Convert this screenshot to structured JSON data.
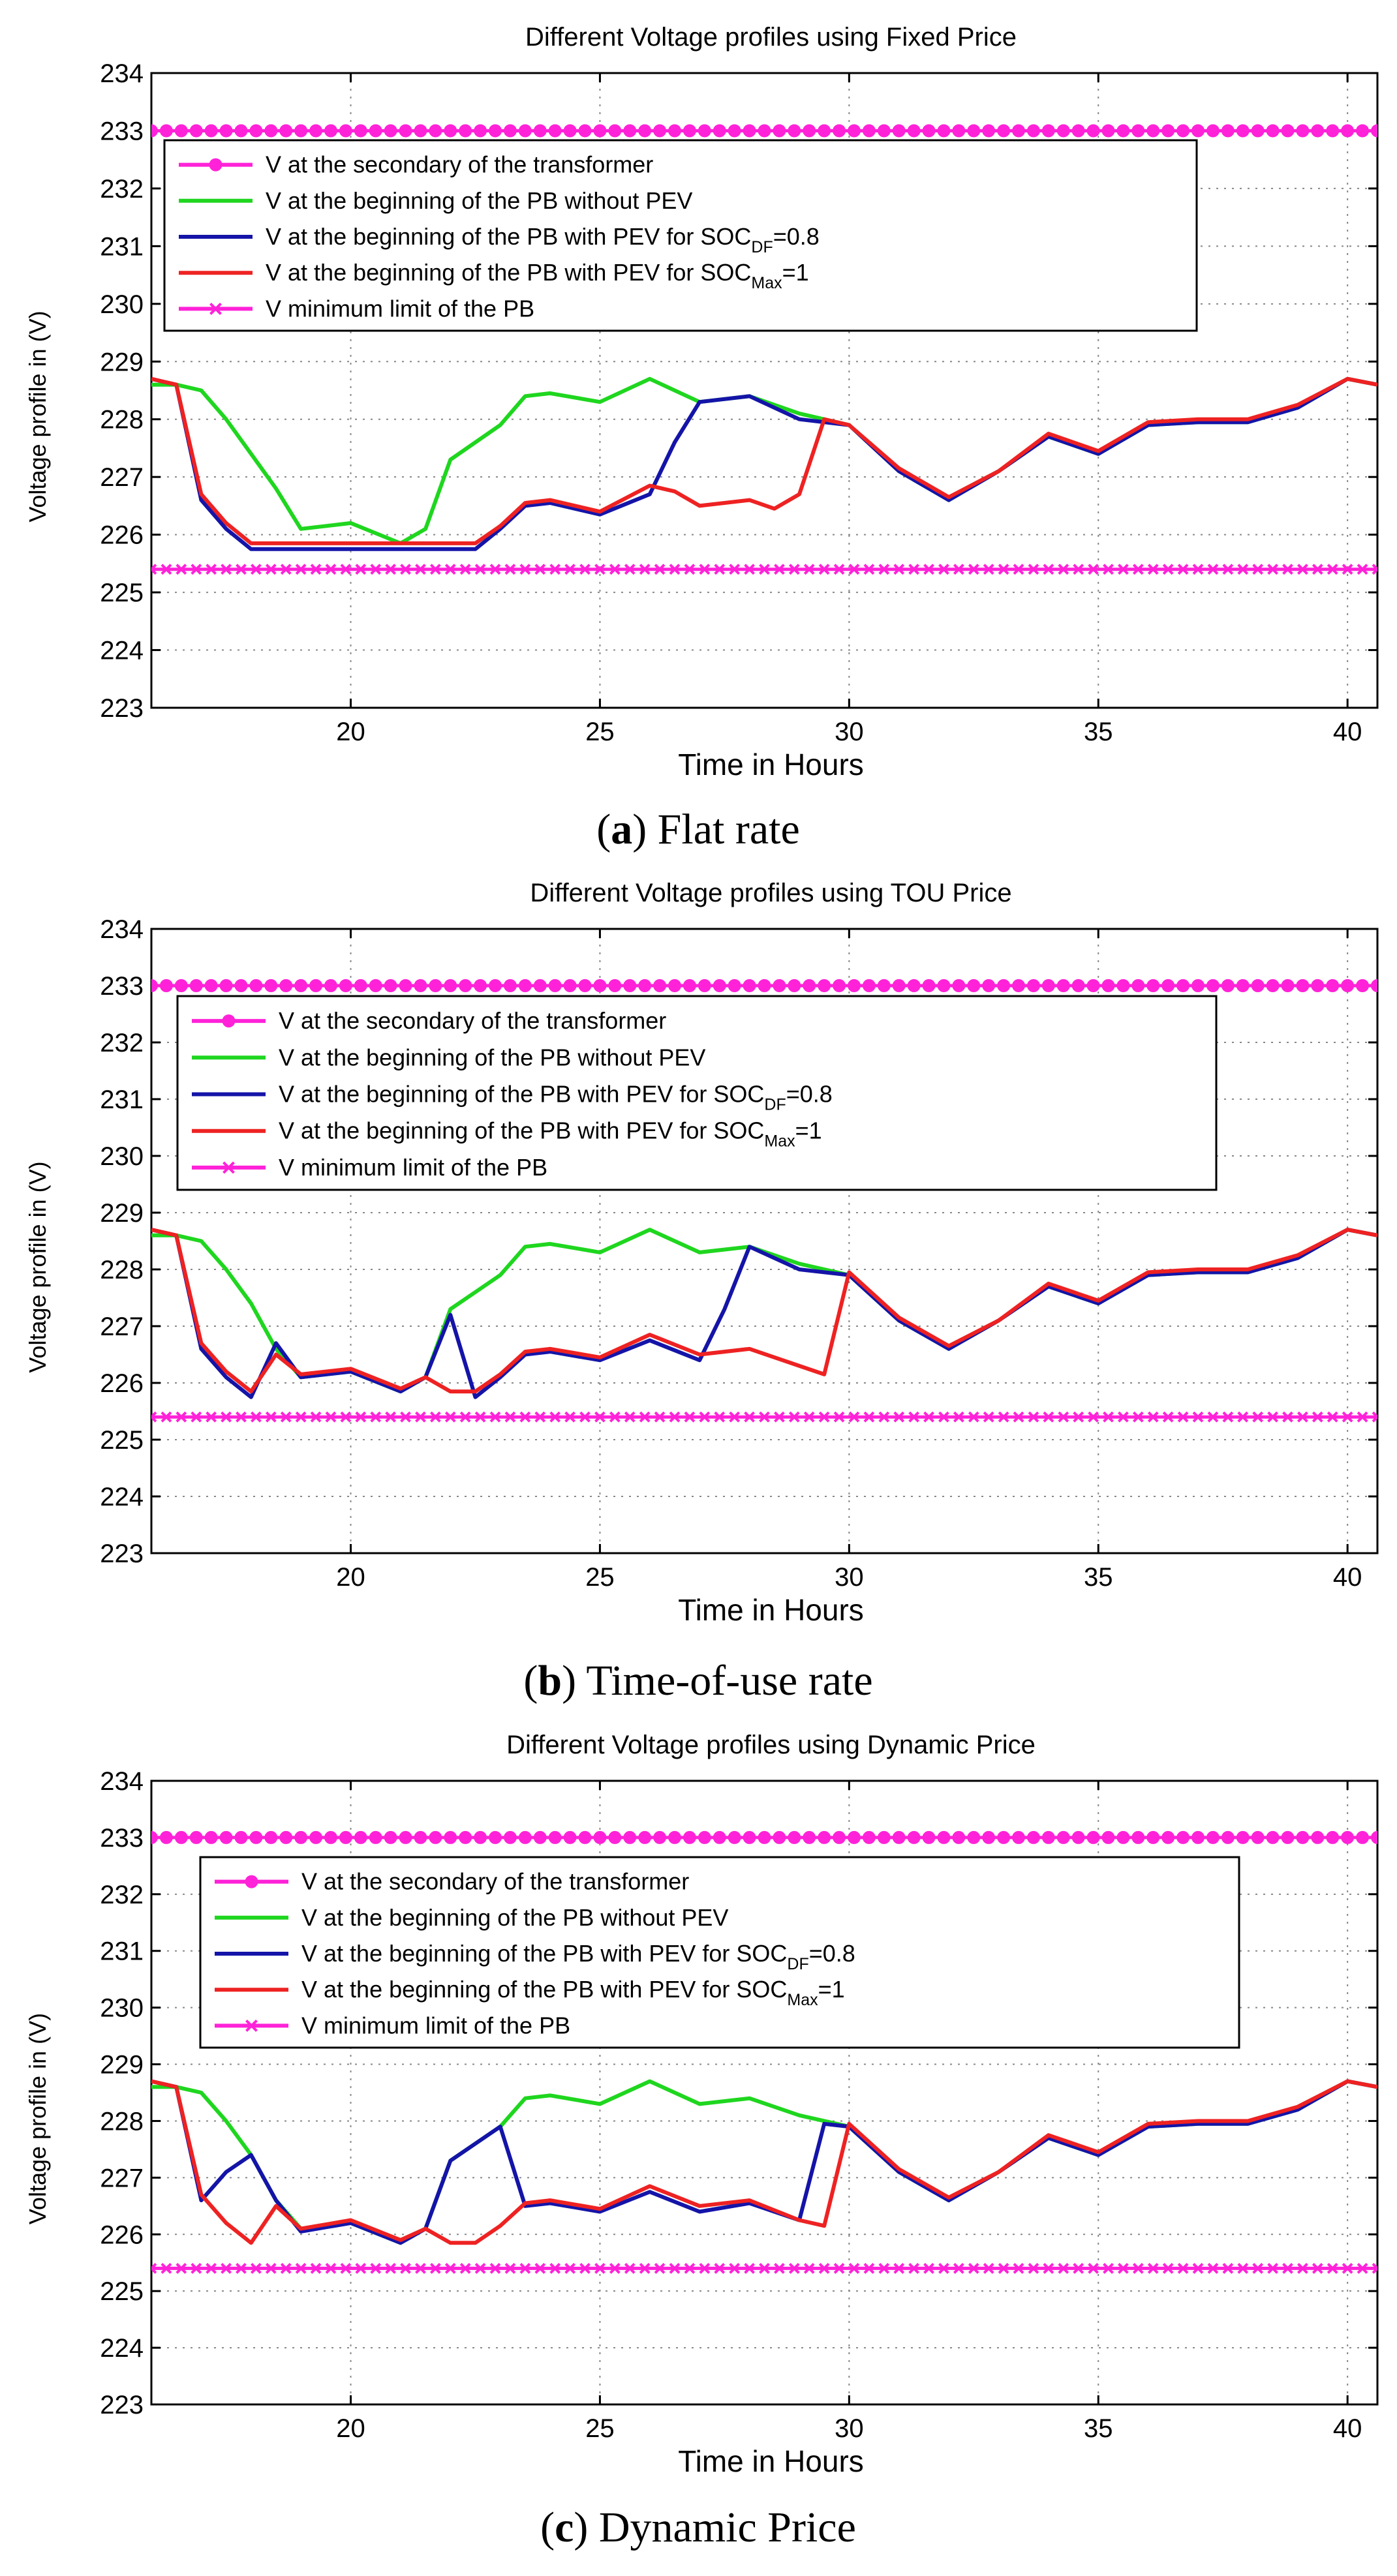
{
  "figure": {
    "legend_entries": [
      {
        "text": "V at the secondary of the transformer",
        "sub": "",
        "tail": "",
        "color": "#ff22d8",
        "marker": "circle"
      },
      {
        "text": "V at the beginning of the PB without PEV",
        "sub": "",
        "tail": "",
        "color": "#1fd61f",
        "marker": "none"
      },
      {
        "text": "V at the beginning of the PB with PEV for SOC",
        "sub": "DF",
        "tail": "=0.8",
        "color": "#1414a8",
        "marker": "none"
      },
      {
        "text": "V at the beginning of the PB with PEV for SOC",
        "sub": "Max",
        "tail": "=1",
        "color": "#ee2222",
        "marker": "none"
      },
      {
        "text": "V minimum limit of the PB",
        "sub": "",
        "tail": "",
        "color": "#ff22d8",
        "marker": "cross"
      }
    ]
  },
  "chart_data": [
    {
      "type": "line",
      "title": "Different Voltage profiles using Fixed Price",
      "xlabel": "Time in Hours",
      "ylabel": "Voltage profile in (V)",
      "xlim": [
        16,
        40.6
      ],
      "ylim": [
        223,
        234
      ],
      "xticks": [
        20,
        25,
        30,
        35,
        40
      ],
      "yticks": [
        223,
        224,
        225,
        226,
        227,
        228,
        229,
        230,
        231,
        232,
        233,
        234
      ],
      "grid": true,
      "legend_position": "top-left",
      "caption_letter": "a",
      "caption_open": "(",
      "caption_rest": ") Flat rate",
      "series": [
        {
          "name": "V at the secondary of the transformer",
          "color": "#ff22d8",
          "marker": "circle",
          "x": [
            16,
            40.6
          ],
          "y": [
            233,
            233
          ]
        },
        {
          "name": "V at the beginning of the PB without PEV",
          "color": "#1fd61f",
          "marker": "none",
          "x": [
            16,
            16.5,
            17,
            17.5,
            18,
            18.5,
            19,
            20,
            21,
            21.5,
            22,
            22.5,
            23,
            23.5,
            24,
            25,
            26,
            27,
            28,
            29,
            30,
            31,
            32,
            33,
            34,
            35,
            36,
            37,
            38,
            39,
            40,
            40.6
          ],
          "y": [
            228.6,
            228.6,
            228.5,
            228.0,
            227.4,
            226.8,
            226.1,
            226.2,
            225.85,
            226.1,
            227.3,
            227.6,
            227.9,
            228.4,
            228.45,
            228.3,
            228.7,
            228.3,
            228.4,
            228.1,
            227.9,
            227.1,
            226.6,
            227.1,
            227.7,
            227.4,
            227.9,
            227.95,
            227.95,
            228.2,
            228.7,
            228.6
          ]
        },
        {
          "name": "V at the beginning of the PB with PEV for SOC_DF=0.8",
          "color": "#1414a8",
          "marker": "none",
          "x": [
            16,
            16.5,
            17,
            17.5,
            18,
            18.5,
            19,
            20,
            21,
            21.5,
            22,
            22.5,
            23,
            23.5,
            24,
            25,
            26,
            26.5,
            27,
            28,
            29,
            30,
            31,
            32,
            33,
            34,
            35,
            36,
            37,
            38,
            39,
            40,
            40.6
          ],
          "y": [
            228.7,
            228.6,
            226.6,
            226.1,
            225.75,
            225.75,
            225.75,
            225.75,
            225.75,
            225.75,
            225.75,
            225.75,
            226.1,
            226.5,
            226.55,
            226.35,
            226.7,
            227.6,
            228.3,
            228.4,
            228.0,
            227.9,
            227.1,
            226.6,
            227.1,
            227.7,
            227.4,
            227.9,
            227.95,
            227.95,
            228.2,
            228.7,
            228.6
          ]
        },
        {
          "name": "V at the beginning of the PB with PEV for SOC_Max=1",
          "color": "#ee2222",
          "marker": "none",
          "x": [
            16,
            16.5,
            17,
            17.5,
            18,
            18.5,
            19,
            20,
            21,
            21.5,
            22,
            22.5,
            23,
            23.5,
            24,
            25,
            26,
            26.5,
            27,
            28,
            28.5,
            29,
            29.5,
            30,
            31,
            32,
            33,
            34,
            35,
            36,
            37,
            38,
            39,
            40,
            40.6
          ],
          "y": [
            228.7,
            228.6,
            226.7,
            226.2,
            225.85,
            225.85,
            225.85,
            225.85,
            225.85,
            225.85,
            225.85,
            225.85,
            226.15,
            226.55,
            226.6,
            226.4,
            226.85,
            226.75,
            226.5,
            226.6,
            226.45,
            226.7,
            228.0,
            227.9,
            227.15,
            226.65,
            227.1,
            227.75,
            227.45,
            227.95,
            228.0,
            228.0,
            228.25,
            228.7,
            228.6
          ]
        },
        {
          "name": "V minimum limit of the PB",
          "color": "#ff22d8",
          "marker": "cross",
          "x": [
            16,
            40.6
          ],
          "y": [
            225.4,
            225.4
          ]
        }
      ]
    },
    {
      "type": "line",
      "title": "Different Voltage profiles using TOU Price",
      "xlabel": "Time in Hours",
      "ylabel": "Voltage profile in (V)",
      "xlim": [
        16,
        40.6
      ],
      "ylim": [
        223,
        234
      ],
      "xticks": [
        20,
        25,
        30,
        35,
        40
      ],
      "yticks": [
        223,
        224,
        225,
        226,
        227,
        228,
        229,
        230,
        231,
        232,
        233,
        234
      ],
      "grid": true,
      "legend_position": "top-left",
      "caption_letter": "b",
      "caption_open": "(",
      "caption_rest": ") Time-of-use rate",
      "series": [
        {
          "name": "V at the secondary of the transformer",
          "color": "#ff22d8",
          "marker": "circle",
          "x": [
            16,
            40.6
          ],
          "y": [
            233,
            233
          ]
        },
        {
          "name": "V at the beginning of the PB without PEV",
          "color": "#1fd61f",
          "marker": "none",
          "x": [
            16,
            16.5,
            17,
            17.5,
            18,
            18.5,
            19,
            20,
            21,
            21.5,
            22,
            22.5,
            23,
            23.5,
            24,
            25,
            26,
            27,
            28,
            29,
            30,
            31,
            32,
            33,
            34,
            35,
            36,
            37,
            38,
            39,
            40,
            40.6
          ],
          "y": [
            228.6,
            228.6,
            228.5,
            228.0,
            227.4,
            226.6,
            226.1,
            226.2,
            225.85,
            226.1,
            227.3,
            227.6,
            227.9,
            228.4,
            228.45,
            228.3,
            228.7,
            228.3,
            228.4,
            228.1,
            227.9,
            227.1,
            226.6,
            227.1,
            227.7,
            227.4,
            227.9,
            227.95,
            227.95,
            228.2,
            228.7,
            228.6
          ]
        },
        {
          "name": "V at the beginning of the PB with PEV for SOC_DF=0.8",
          "color": "#1414a8",
          "marker": "none",
          "x": [
            16,
            16.5,
            17,
            17.5,
            18,
            18.5,
            19,
            20,
            21,
            21.5,
            22,
            22.5,
            23,
            23.5,
            24,
            25,
            26,
            27,
            27.5,
            28,
            29,
            30,
            31,
            32,
            33,
            34,
            35,
            36,
            37,
            38,
            39,
            40,
            40.6
          ],
          "y": [
            228.7,
            228.6,
            226.6,
            226.1,
            225.75,
            226.7,
            226.1,
            226.2,
            225.85,
            226.1,
            227.2,
            225.75,
            226.1,
            226.5,
            226.55,
            226.4,
            226.75,
            226.4,
            227.3,
            228.4,
            228.0,
            227.9,
            227.1,
            226.6,
            227.1,
            227.7,
            227.4,
            227.9,
            227.95,
            227.95,
            228.2,
            228.7,
            228.6
          ]
        },
        {
          "name": "V at the beginning of the PB with PEV for SOC_Max=1",
          "color": "#ee2222",
          "marker": "none",
          "x": [
            16,
            16.5,
            17,
            17.5,
            18,
            18.5,
            19,
            20,
            21,
            21.5,
            22,
            22.5,
            23,
            23.5,
            24,
            25,
            26,
            27,
            28,
            29,
            29.5,
            30,
            31,
            32,
            33,
            34,
            35,
            36,
            37,
            38,
            39,
            40,
            40.6
          ],
          "y": [
            228.7,
            228.6,
            226.7,
            226.2,
            225.85,
            226.5,
            226.15,
            226.25,
            225.9,
            226.1,
            225.85,
            225.85,
            226.15,
            226.55,
            226.6,
            226.45,
            226.85,
            226.5,
            226.6,
            226.3,
            226.15,
            227.95,
            227.15,
            226.65,
            227.1,
            227.75,
            227.45,
            227.95,
            228.0,
            228.0,
            228.25,
            228.7,
            228.6
          ]
        },
        {
          "name": "V minimum limit of the PB",
          "color": "#ff22d8",
          "marker": "cross",
          "x": [
            16,
            40.6
          ],
          "y": [
            225.4,
            225.4
          ]
        }
      ]
    },
    {
      "type": "line",
      "title": "Different Voltage profiles using Dynamic Price",
      "xlabel": "Time in Hours",
      "ylabel": "Voltage profile in (V)",
      "xlim": [
        16,
        40.6
      ],
      "ylim": [
        223,
        234
      ],
      "xticks": [
        20,
        25,
        30,
        35,
        40
      ],
      "yticks": [
        223,
        224,
        225,
        226,
        227,
        228,
        229,
        230,
        231,
        232,
        233,
        234
      ],
      "grid": true,
      "legend_position": "top-left",
      "caption_letter": "c",
      "caption_open": "(",
      "caption_rest": ") Dynamic Price",
      "series": [
        {
          "name": "V at the secondary of the transformer",
          "color": "#ff22d8",
          "marker": "circle",
          "x": [
            16,
            40.6
          ],
          "y": [
            233,
            233
          ]
        },
        {
          "name": "V at the beginning of the PB without PEV",
          "color": "#1fd61f",
          "marker": "none",
          "x": [
            16,
            16.5,
            17,
            17.5,
            18,
            18.5,
            19,
            20,
            21,
            21.5,
            22,
            22.5,
            23,
            23.5,
            24,
            25,
            26,
            27,
            28,
            29,
            30,
            31,
            32,
            33,
            34,
            35,
            36,
            37,
            38,
            39,
            40,
            40.6
          ],
          "y": [
            228.6,
            228.6,
            228.5,
            228.0,
            227.4,
            226.6,
            226.1,
            226.2,
            225.85,
            226.1,
            227.3,
            227.6,
            227.9,
            228.4,
            228.45,
            228.3,
            228.7,
            228.3,
            228.4,
            228.1,
            227.9,
            227.1,
            226.6,
            227.1,
            227.7,
            227.4,
            227.9,
            227.95,
            227.95,
            228.2,
            228.7,
            228.6
          ]
        },
        {
          "name": "V at the beginning of the PB with PEV for SOC_DF=0.8",
          "color": "#1414a8",
          "marker": "none",
          "x": [
            16,
            16.5,
            17,
            17.5,
            18,
            18.5,
            19,
            20,
            21,
            21.5,
            22,
            22.5,
            23,
            23.5,
            24,
            25,
            26,
            27,
            28,
            29,
            29.5,
            30,
            31,
            32,
            33,
            34,
            35,
            36,
            37,
            38,
            39,
            40,
            40.6
          ],
          "y": [
            228.7,
            228.6,
            226.6,
            227.1,
            227.4,
            226.6,
            226.05,
            226.2,
            225.85,
            226.1,
            227.3,
            227.6,
            227.9,
            226.5,
            226.55,
            226.4,
            226.75,
            226.4,
            226.55,
            226.25,
            227.95,
            227.9,
            227.1,
            226.6,
            227.1,
            227.7,
            227.4,
            227.9,
            227.95,
            227.95,
            228.2,
            228.7,
            228.6
          ]
        },
        {
          "name": "V at the beginning of the PB with PEV for SOC_Max=1",
          "color": "#ee2222",
          "marker": "none",
          "x": [
            16,
            16.5,
            17,
            17.5,
            18,
            18.5,
            19,
            20,
            21,
            21.5,
            22,
            22.5,
            23,
            23.5,
            24,
            25,
            26,
            27,
            28,
            29,
            29.5,
            30,
            31,
            32,
            33,
            34,
            35,
            36,
            37,
            38,
            39,
            40,
            40.6
          ],
          "y": [
            228.7,
            228.6,
            226.7,
            226.2,
            225.85,
            226.5,
            226.1,
            226.25,
            225.9,
            226.1,
            225.85,
            225.85,
            226.15,
            226.55,
            226.6,
            226.45,
            226.85,
            226.5,
            226.6,
            226.25,
            226.15,
            227.95,
            227.15,
            226.65,
            227.1,
            227.75,
            227.45,
            227.95,
            228.0,
            228.0,
            228.25,
            228.7,
            228.6
          ]
        },
        {
          "name": "V minimum limit of the PB",
          "color": "#ff22d8",
          "marker": "cross",
          "x": [
            16,
            40.6
          ],
          "y": [
            225.4,
            225.4
          ]
        }
      ]
    }
  ]
}
